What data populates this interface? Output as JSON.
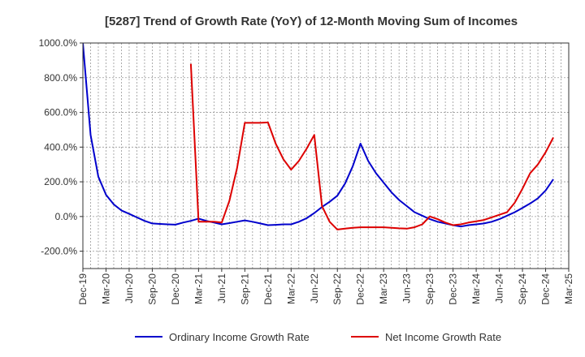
{
  "chart_data": {
    "type": "line",
    "title": "[5287]  Trend of Growth Rate (YoY) of 12-Month Moving Sum of Incomes",
    "xlabel": "",
    "ylabel": "",
    "ylim": [
      -300,
      1000
    ],
    "yticks": [
      1000,
      800,
      600,
      400,
      200,
      0,
      -200
    ],
    "ytick_labels": [
      "1000.0%",
      "800.0%",
      "600.0%",
      "400.0%",
      "200.0%",
      "0.0%",
      "-200.0%"
    ],
    "xtick_labels": [
      "Dec-19",
      "Mar-20",
      "Jun-20",
      "Sep-20",
      "Dec-20",
      "Mar-21",
      "Jun-21",
      "Sep-21",
      "Dec-21",
      "Mar-22",
      "Jun-22",
      "Sep-22",
      "Dec-22",
      "Mar-23",
      "Jun-23",
      "Sep-23",
      "Dec-23",
      "Mar-24",
      "Jun-24",
      "Sep-24",
      "Dec-24",
      "Mar-25"
    ],
    "grid": true,
    "legend_position": "bottom",
    "colors": {
      "blue": "#0000cc",
      "red": "#dd0000",
      "grid": "#999999"
    },
    "series": [
      {
        "name": "Ordinary Income Growth Rate",
        "color": "#0000cc",
        "start_index": 0,
        "values": [
          1000,
          470,
          230,
          125,
          70,
          35,
          15,
          -5,
          -25,
          -40,
          -43,
          -45,
          -47,
          -35,
          -25,
          -12,
          -25,
          -35,
          -45,
          -38,
          -30,
          -22,
          -30,
          -40,
          -50,
          -48,
          -45,
          -45,
          -30,
          -10,
          20,
          55,
          85,
          120,
          190,
          290,
          420,
          320,
          250,
          195,
          140,
          95,
          60,
          25,
          5,
          -15,
          -30,
          -40,
          -50,
          -58,
          -50,
          -45,
          -40,
          -30,
          -15,
          5,
          25,
          50,
          75,
          105,
          150,
          215
        ]
      },
      {
        "name": "Net Income Growth Rate",
        "color": "#dd0000",
        "start_index": 14,
        "values": [
          880,
          -30,
          -30,
          -30,
          -35,
          90,
          280,
          540,
          540,
          540,
          542,
          420,
          330,
          270,
          320,
          390,
          470,
          60,
          -30,
          -75,
          -70,
          -65,
          -62,
          -62,
          -62,
          -62,
          -65,
          -68,
          -70,
          -62,
          -45,
          0,
          -15,
          -35,
          -50,
          -45,
          -35,
          -28,
          -20,
          -5,
          10,
          25,
          80,
          160,
          250,
          300,
          370,
          455
        ]
      }
    ]
  }
}
